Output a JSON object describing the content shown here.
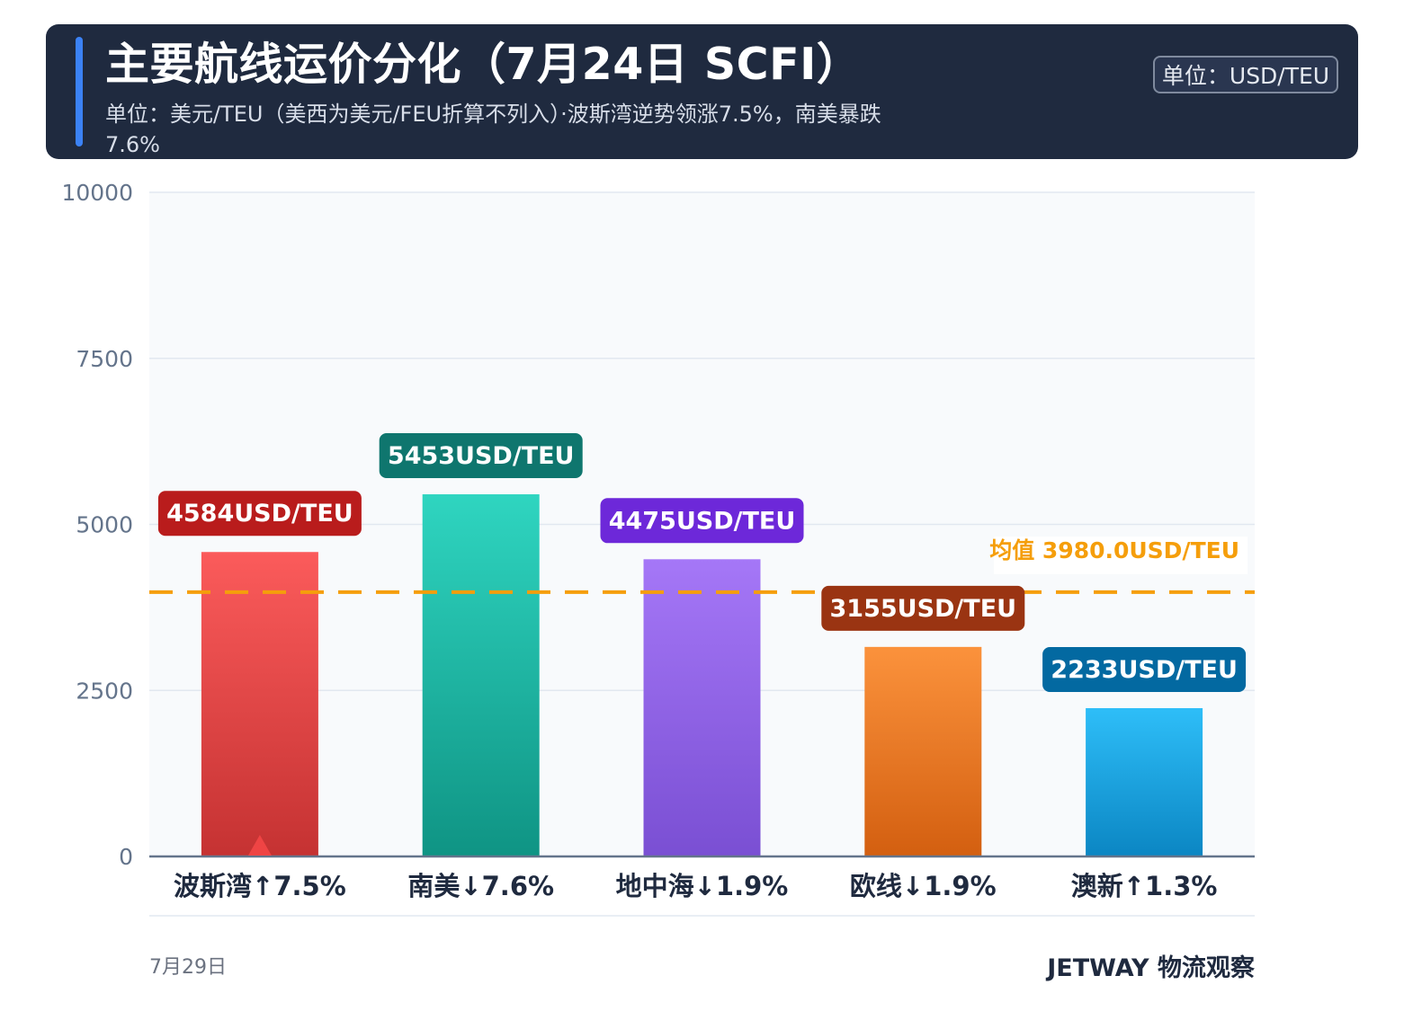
{
  "header": {
    "title": "主要航线运价分化（7月24日 SCFI）",
    "subtitle": "单位：美元/TEU（美西为美元/FEU折算不列入）·波斯湾逆势领涨7.5%，南美暴跌7.6%",
    "unit_badge": "单位：USD/TEU"
  },
  "footer": {
    "date": "7月29日",
    "brand": "JETWAY 物流观察"
  },
  "chart_data": {
    "type": "bar",
    "title": "主要航线运价分化（7月24日 SCFI）",
    "subtitle": "单位：美元/TEU（美西为美元/FEU折算不列入）·波斯湾逆势领涨7.5%，南美暴跌7.6%",
    "categories": [
      "波斯湾↑7.5%",
      "南美↓7.6%",
      "地中海↓1.9%",
      "欧线↓1.9%",
      "澳新↑1.3%"
    ],
    "values": [
      4584,
      5453,
      4475,
      3155,
      2233
    ],
    "data_labels": [
      "4584USD/TEU",
      "5453USD/TEU",
      "4475USD/TEU",
      "3155USD/TEU",
      "2233USD/TEU"
    ],
    "bar_colors": [
      {
        "top": "#fb5b5b",
        "bottom": "#c53232",
        "label_bg": "#b91c1c"
      },
      {
        "top": "#2fd5c0",
        "bottom": "#0f9484",
        "label_bg": "#0f766e"
      },
      {
        "top": "#a577f7",
        "bottom": "#7a4fd3",
        "label_bg": "#6d28d9"
      },
      {
        "top": "#fb923c",
        "bottom": "#d35f10",
        "label_bg": "#9a3412"
      },
      {
        "top": "#2ebef8",
        "bottom": "#0b86c3",
        "label_bg": "#0369a1"
      }
    ],
    "ylim": [
      0,
      10000
    ],
    "yticks": [
      0,
      2500,
      5000,
      7500,
      10000
    ],
    "grid": true,
    "mean": {
      "value": 3980.0,
      "label": "均值 3980.0USD/TEU",
      "color": "#f59e0b"
    },
    "marker": {
      "category_index": 0,
      "shape": "up-triangle",
      "color": "#ef4444"
    },
    "xlabel": "",
    "ylabel": ""
  }
}
